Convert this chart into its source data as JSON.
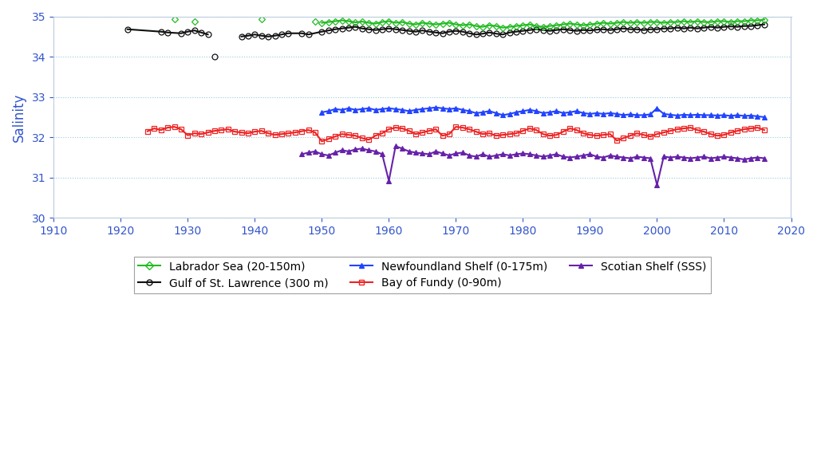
{
  "title": "",
  "ylabel": "Salinity",
  "ylabel_color": "#3355cc",
  "xlim": [
    1910,
    2020
  ],
  "ylim": [
    30,
    35
  ],
  "yticks": [
    30,
    31,
    32,
    33,
    34,
    35
  ],
  "xticks": [
    1910,
    1920,
    1930,
    1940,
    1950,
    1960,
    1970,
    1980,
    1990,
    2000,
    2010,
    2020
  ],
  "background_color": "#ffffff",
  "grid_color": "#99ccdd",
  "labrador_sea": {
    "color": "#22bb22",
    "marker": "D",
    "markersize": 4,
    "label": "Labrador Sea (20-150m)",
    "years": [
      1928,
      1931,
      1941,
      1949,
      1950,
      1951,
      1952,
      1953,
      1954,
      1955,
      1956,
      1957,
      1958,
      1959,
      1960,
      1961,
      1962,
      1963,
      1964,
      1965,
      1966,
      1967,
      1968,
      1969,
      1970,
      1971,
      1972,
      1973,
      1974,
      1975,
      1976,
      1977,
      1978,
      1979,
      1980,
      1981,
      1982,
      1983,
      1984,
      1985,
      1986,
      1987,
      1988,
      1989,
      1990,
      1991,
      1992,
      1993,
      1994,
      1995,
      1996,
      1997,
      1998,
      1999,
      2000,
      2001,
      2002,
      2003,
      2004,
      2005,
      2006,
      2007,
      2008,
      2009,
      2010,
      2011,
      2012,
      2013,
      2014,
      2015,
      2016
    ],
    "values": [
      34.93,
      34.87,
      34.93,
      34.88,
      34.84,
      34.86,
      34.88,
      34.9,
      34.88,
      34.85,
      34.87,
      34.84,
      34.82,
      34.86,
      34.88,
      34.84,
      34.86,
      34.82,
      34.8,
      34.84,
      34.82,
      34.8,
      34.82,
      34.84,
      34.8,
      34.78,
      34.8,
      34.76,
      34.74,
      34.78,
      34.76,
      34.72,
      34.74,
      34.76,
      34.78,
      34.8,
      34.76,
      34.74,
      34.76,
      34.78,
      34.8,
      34.82,
      34.8,
      34.78,
      34.8,
      34.82,
      34.84,
      34.82,
      34.84,
      34.86,
      34.84,
      34.86,
      34.84,
      34.86,
      34.86,
      34.84,
      34.86,
      34.86,
      34.88,
      34.86,
      34.88,
      34.86,
      34.86,
      34.88,
      34.88,
      34.86,
      34.88,
      34.88,
      34.9,
      34.9,
      34.92
    ]
  },
  "gulf_stl": {
    "color": "#111111",
    "marker": "o",
    "markersize": 5,
    "label": "Gulf of St. Lawrence (300 m)",
    "years_early": [
      1921,
      1926,
      1927,
      1929,
      1930,
      1931,
      1932,
      1933
    ],
    "values_early": [
      34.68,
      34.62,
      34.6,
      34.58,
      34.62,
      34.65,
      34.6,
      34.55
    ],
    "years_outlier": [
      1934
    ],
    "values_outlier": [
      34.0
    ],
    "years_main": [
      1938,
      1939,
      1940,
      1941,
      1942,
      1943,
      1944,
      1945,
      1947,
      1948,
      1950,
      1951,
      1952,
      1953,
      1954,
      1955,
      1956,
      1957,
      1958,
      1959,
      1960,
      1961,
      1962,
      1963,
      1964,
      1965,
      1966,
      1967,
      1968,
      1969,
      1970,
      1971,
      1972,
      1973,
      1974,
      1975,
      1976,
      1977,
      1978,
      1979,
      1980,
      1981,
      1982,
      1983,
      1984,
      1985,
      1986,
      1987,
      1988,
      1989,
      1990,
      1991,
      1992,
      1993,
      1994,
      1995,
      1996,
      1997,
      1998,
      1999,
      2000,
      2001,
      2002,
      2003,
      2004,
      2005,
      2006,
      2007,
      2008,
      2009,
      2010,
      2011,
      2012,
      2013,
      2014,
      2015,
      2016
    ],
    "values_main": [
      34.5,
      34.52,
      34.55,
      34.52,
      34.5,
      34.52,
      34.55,
      34.58,
      34.58,
      34.55,
      34.62,
      34.65,
      34.68,
      34.7,
      34.72,
      34.74,
      34.7,
      34.68,
      34.66,
      34.68,
      34.7,
      34.68,
      34.66,
      34.64,
      34.62,
      34.65,
      34.62,
      34.6,
      34.58,
      34.62,
      34.64,
      34.62,
      34.58,
      34.55,
      34.57,
      34.6,
      34.57,
      34.55,
      34.6,
      34.62,
      34.64,
      34.66,
      34.68,
      34.66,
      34.64,
      34.66,
      34.68,
      34.66,
      34.64,
      34.66,
      34.65,
      34.67,
      34.68,
      34.66,
      34.68,
      34.7,
      34.68,
      34.68,
      34.66,
      34.68,
      34.68,
      34.7,
      34.7,
      34.72,
      34.7,
      34.72,
      34.7,
      34.72,
      34.74,
      34.72,
      34.74,
      34.75,
      34.74,
      34.76,
      34.76,
      34.78,
      34.8
    ]
  },
  "nfl_shelf": {
    "color": "#2244ff",
    "marker": "^",
    "markersize": 5,
    "label": "Newfoundland Shelf (0-175m)",
    "years": [
      1950,
      1951,
      1952,
      1953,
      1954,
      1955,
      1956,
      1957,
      1958,
      1959,
      1960,
      1961,
      1962,
      1963,
      1964,
      1965,
      1966,
      1967,
      1968,
      1969,
      1970,
      1971,
      1972,
      1973,
      1974,
      1975,
      1976,
      1977,
      1978,
      1979,
      1980,
      1981,
      1982,
      1983,
      1984,
      1985,
      1986,
      1987,
      1988,
      1989,
      1990,
      1991,
      1992,
      1993,
      1994,
      1995,
      1996,
      1997,
      1998,
      1999,
      2000,
      2001,
      2002,
      2003,
      2004,
      2005,
      2006,
      2007,
      2008,
      2009,
      2010,
      2011,
      2012,
      2013,
      2014,
      2015,
      2016
    ],
    "values": [
      32.62,
      32.65,
      32.7,
      32.68,
      32.72,
      32.68,
      32.7,
      32.72,
      32.68,
      32.7,
      32.72,
      32.7,
      32.68,
      32.65,
      32.68,
      32.7,
      32.72,
      32.74,
      32.72,
      32.7,
      32.72,
      32.68,
      32.65,
      32.6,
      32.62,
      32.65,
      32.6,
      32.55,
      32.58,
      32.62,
      32.65,
      32.68,
      32.65,
      32.6,
      32.62,
      32.65,
      32.6,
      32.62,
      32.65,
      32.6,
      32.58,
      32.6,
      32.58,
      32.6,
      32.58,
      32.55,
      32.57,
      32.55,
      32.55,
      32.57,
      32.72,
      32.58,
      32.56,
      32.54,
      32.56,
      32.55,
      32.56,
      32.55,
      32.55,
      32.54,
      32.55,
      32.53,
      32.55,
      32.53,
      32.54,
      32.52,
      32.5
    ]
  },
  "bay_fundy": {
    "color": "#ee2222",
    "marker": "s",
    "markersize": 5,
    "label": "Bay of Fundy (0-90m)",
    "years": [
      1924,
      1925,
      1926,
      1927,
      1928,
      1929,
      1930,
      1931,
      1932,
      1933,
      1934,
      1935,
      1936,
      1937,
      1938,
      1939,
      1940,
      1941,
      1942,
      1943,
      1944,
      1945,
      1946,
      1947,
      1948,
      1949,
      1950,
      1951,
      1952,
      1953,
      1954,
      1955,
      1956,
      1957,
      1958,
      1959,
      1960,
      1961,
      1962,
      1963,
      1964,
      1965,
      1966,
      1967,
      1968,
      1969,
      1970,
      1971,
      1972,
      1973,
      1974,
      1975,
      1976,
      1977,
      1978,
      1979,
      1980,
      1981,
      1982,
      1983,
      1984,
      1985,
      1986,
      1987,
      1988,
      1989,
      1990,
      1991,
      1992,
      1993,
      1994,
      1995,
      1996,
      1997,
      1998,
      1999,
      2000,
      2001,
      2002,
      2003,
      2004,
      2005,
      2006,
      2007,
      2008,
      2009,
      2010,
      2011,
      2012,
      2013,
      2014,
      2015,
      2016
    ],
    "values": [
      32.15,
      32.22,
      32.18,
      32.24,
      32.26,
      32.2,
      32.05,
      32.1,
      32.08,
      32.12,
      32.16,
      32.18,
      32.2,
      32.14,
      32.12,
      32.1,
      32.14,
      32.16,
      32.1,
      32.06,
      32.08,
      32.1,
      32.12,
      32.15,
      32.18,
      32.12,
      31.9,
      31.96,
      32.02,
      32.08,
      32.06,
      32.04,
      31.98,
      31.94,
      32.04,
      32.1,
      32.2,
      32.24,
      32.22,
      32.16,
      32.08,
      32.12,
      32.16,
      32.2,
      32.04,
      32.08,
      32.26,
      32.24,
      32.2,
      32.14,
      32.08,
      32.1,
      32.04,
      32.06,
      32.08,
      32.1,
      32.16,
      32.22,
      32.18,
      32.08,
      32.04,
      32.06,
      32.14,
      32.22,
      32.18,
      32.1,
      32.06,
      32.04,
      32.06,
      32.08,
      31.92,
      31.98,
      32.04,
      32.1,
      32.06,
      32.02,
      32.08,
      32.12,
      32.16,
      32.2,
      32.22,
      32.24,
      32.18,
      32.14,
      32.08,
      32.04,
      32.06,
      32.12,
      32.16,
      32.2,
      32.22,
      32.24,
      32.18
    ]
  },
  "scotian_shelf": {
    "color": "#6622aa",
    "marker": "^",
    "markersize": 5,
    "label": "Scotian Shelf (SSS)",
    "years": [
      1947,
      1948,
      1949,
      1950,
      1951,
      1952,
      1953,
      1954,
      1955,
      1956,
      1957,
      1958,
      1959,
      1960,
      1961,
      1962,
      1963,
      1964,
      1965,
      1966,
      1967,
      1968,
      1969,
      1970,
      1971,
      1972,
      1973,
      1974,
      1975,
      1976,
      1977,
      1978,
      1979,
      1980,
      1981,
      1982,
      1983,
      1984,
      1985,
      1986,
      1987,
      1988,
      1989,
      1990,
      1991,
      1992,
      1993,
      1994,
      1995,
      1996,
      1997,
      1998,
      1999,
      2000,
      2001,
      2002,
      2003,
      2004,
      2005,
      2006,
      2007,
      2008,
      2009,
      2010,
      2011,
      2012,
      2013,
      2014,
      2015,
      2016
    ],
    "values": [
      31.58,
      31.62,
      31.65,
      31.58,
      31.55,
      31.62,
      31.68,
      31.65,
      31.7,
      31.72,
      31.68,
      31.65,
      31.58,
      30.92,
      31.78,
      31.72,
      31.65,
      31.62,
      31.6,
      31.58,
      31.65,
      31.6,
      31.55,
      31.6,
      31.62,
      31.55,
      31.52,
      31.58,
      31.52,
      31.55,
      31.58,
      31.55,
      31.58,
      31.6,
      31.58,
      31.55,
      31.52,
      31.55,
      31.58,
      31.52,
      31.5,
      31.52,
      31.55,
      31.58,
      31.52,
      31.5,
      31.55,
      31.52,
      31.5,
      31.48,
      31.52,
      31.5,
      31.48,
      30.82,
      31.52,
      31.5,
      31.52,
      31.5,
      31.48,
      31.5,
      31.52,
      31.48,
      31.5,
      31.52,
      31.5,
      31.48,
      31.45,
      31.48,
      31.5,
      31.48
    ]
  },
  "legend_fontsize": 10,
  "tick_color": "#3355cc",
  "tick_fontsize": 10,
  "axis_label_fontsize": 12
}
